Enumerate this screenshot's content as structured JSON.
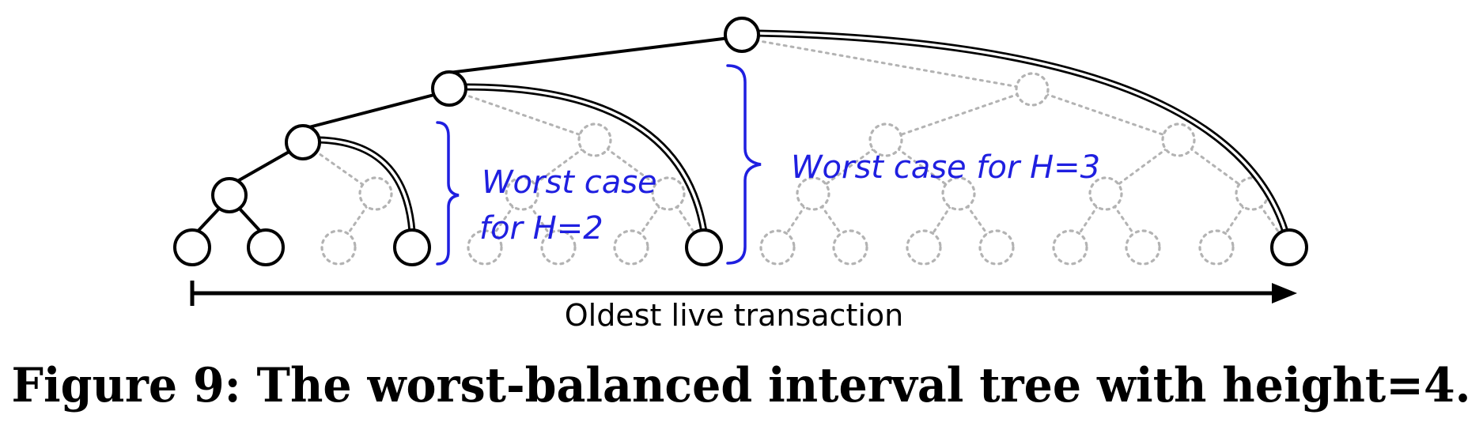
{
  "figure": {
    "caption": "Figure 9: The worst-balanced interval tree with height=4.",
    "axis_label": "Oldest live transaction",
    "annotations": {
      "h2_line1": "Worst case",
      "h2_line2": "for H=2",
      "h3": "Worst case for H=3"
    }
  },
  "colors": {
    "annotation": "#1f1fe0",
    "ghost": "#b3b3b3",
    "solid": "#000000"
  }
}
